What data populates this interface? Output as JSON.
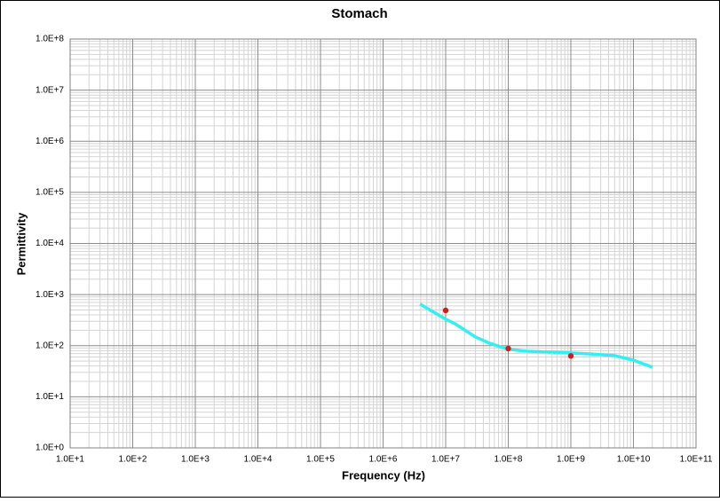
{
  "chart_data": {
    "type": "line",
    "title": "Stomach",
    "x_label": "Frequency (Hz)",
    "y_label": "Permittivity",
    "log_x": true,
    "log_y": true,
    "grid": true,
    "minor_grid": true,
    "xlim": [
      10,
      100000000000
    ],
    "ylim": [
      1,
      100000000
    ],
    "xticks": [
      {
        "value": 10,
        "label": "1.0E+1"
      },
      {
        "value": 100,
        "label": "1.0E+2"
      },
      {
        "value": 1000,
        "label": "1.0E+3"
      },
      {
        "value": 10000,
        "label": "1.0E+4"
      },
      {
        "value": 100000,
        "label": "1.0E+5"
      },
      {
        "value": 1000000,
        "label": "1.0E+6"
      },
      {
        "value": 10000000,
        "label": "1.0E+7"
      },
      {
        "value": 100000000,
        "label": "1.0E+8"
      },
      {
        "value": 1000000000,
        "label": "1.0E+9"
      },
      {
        "value": 10000000000,
        "label": "1.0E+10"
      },
      {
        "value": 100000000000,
        "label": "1.0E+11"
      }
    ],
    "yticks": [
      {
        "value": 1,
        "label": "1.0E+0"
      },
      {
        "value": 10,
        "label": "1.0E+1"
      },
      {
        "value": 100,
        "label": "1.0E+2"
      },
      {
        "value": 1000,
        "label": "1.0E+3"
      },
      {
        "value": 10000,
        "label": "1.0E+4"
      },
      {
        "value": 100000,
        "label": "1.0E+5"
      },
      {
        "value": 1000000,
        "label": "1.0E+6"
      },
      {
        "value": 10000000,
        "label": "1.0E+7"
      },
      {
        "value": 100000000,
        "label": "1.0E+8"
      }
    ],
    "series": [
      {
        "type": "line",
        "color": "#33f0f0",
        "x": [
          3900000,
          10000000,
          14000000,
          30000000,
          50000000,
          100000000,
          200000000,
          500000000,
          1000000000,
          2000000000,
          5000000000,
          10000000000,
          20000000000
        ],
        "values": [
          650,
          330,
          270,
          148,
          112,
          85,
          78,
          75,
          72,
          69,
          64,
          52,
          38
        ]
      },
      {
        "type": "scatter",
        "color": "#cc1f1f",
        "x": [
          10000000,
          100000000,
          1000000000
        ],
        "values": [
          490,
          88,
          63
        ]
      }
    ]
  }
}
